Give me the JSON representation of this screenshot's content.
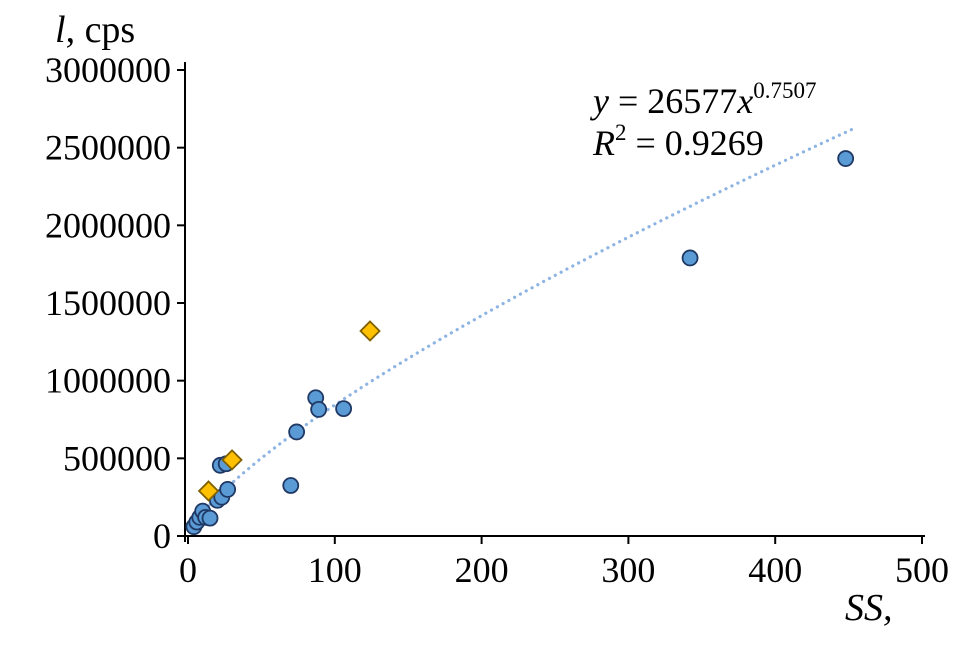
{
  "chart_data": {
    "type": "scatter",
    "title": "",
    "xlabel": "SS,",
    "ylabel": {
      "italic": "l",
      "rest": ", cps"
    },
    "xlim": [
      0,
      500
    ],
    "ylim": [
      0,
      3000000
    ],
    "grid": false,
    "legend": "none",
    "xticks": [
      {
        "v": 0,
        "label": "0"
      },
      {
        "v": 100,
        "label": "100"
      },
      {
        "v": 200,
        "label": "200"
      },
      {
        "v": 300,
        "label": "300"
      },
      {
        "v": 400,
        "label": "400"
      },
      {
        "v": 500,
        "label": "500"
      }
    ],
    "yticks": [
      {
        "v": 0,
        "label": "0"
      },
      {
        "v": 500000,
        "label": "500000"
      },
      {
        "v": 1000000,
        "label": "1000000"
      },
      {
        "v": 1500000,
        "label": "1500000"
      },
      {
        "v": 2000000,
        "label": "2000000"
      },
      {
        "v": 2500000,
        "label": "2500000"
      },
      {
        "v": 3000000,
        "label": "3000000"
      }
    ],
    "series": [
      {
        "name": "blue-circles",
        "marker": "circle",
        "fill": "#5B9BD5",
        "stroke": "#1F3864",
        "points": [
          [
            4,
            60000
          ],
          [
            6,
            90000
          ],
          [
            8,
            120000
          ],
          [
            10,
            160000
          ],
          [
            12,
            120000
          ],
          [
            15,
            115000
          ],
          [
            20,
            230000
          ],
          [
            23,
            250000
          ],
          [
            27,
            300000
          ],
          [
            22,
            455000
          ],
          [
            26,
            465000
          ],
          [
            70,
            325000
          ],
          [
            74,
            670000
          ],
          [
            87,
            890000
          ],
          [
            89,
            815000
          ],
          [
            106,
            820000
          ],
          [
            342,
            1790000
          ],
          [
            448,
            2430000
          ]
        ]
      },
      {
        "name": "orange-diamonds",
        "marker": "diamond",
        "fill": "#FFC000",
        "stroke": "#7F6000",
        "points": [
          [
            14,
            290000
          ],
          [
            30,
            490000
          ],
          [
            124,
            1320000
          ]
        ]
      }
    ],
    "trendline": {
      "type": "power",
      "a": 26577,
      "b": 0.7507,
      "x_start": 15,
      "x_end": 452,
      "color": "#8EB4E3",
      "style": "dotted"
    },
    "equation": {
      "y_var": "y",
      "mid": " = 26577",
      "x_var": "x",
      "exponent": "0.7507",
      "r_var": "R",
      "r_sup": "2",
      "r_rest": " = 0.9269"
    }
  }
}
